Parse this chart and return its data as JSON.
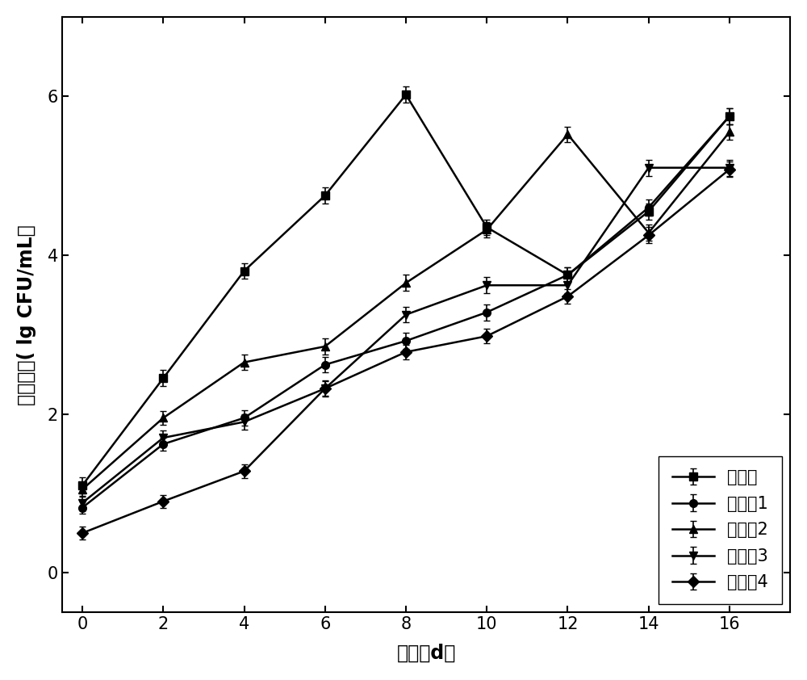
{
  "x": [
    0,
    2,
    4,
    6,
    8,
    10,
    12,
    14,
    16
  ],
  "series_order": [
    "对比例",
    "实施例1",
    "实施例2",
    "实施例3",
    "实施例4"
  ],
  "series": {
    "对比例": {
      "y": [
        1.1,
        2.45,
        3.8,
        4.75,
        6.02,
        4.35,
        3.75,
        4.55,
        5.75
      ],
      "yerr": [
        0.1,
        0.1,
        0.1,
        0.1,
        0.1,
        0.1,
        0.1,
        0.1,
        0.1
      ],
      "marker": "s",
      "label": "对比例"
    },
    "实施例1": {
      "y": [
        0.82,
        1.62,
        1.95,
        2.62,
        2.92,
        3.28,
        3.75,
        4.6,
        5.75
      ],
      "yerr": [
        0.08,
        0.08,
        0.1,
        0.1,
        0.1,
        0.1,
        0.1,
        0.1,
        0.1
      ],
      "marker": "o",
      "label": "实施例1"
    },
    "实施例2": {
      "y": [
        1.05,
        1.95,
        2.65,
        2.85,
        3.65,
        4.32,
        5.52,
        4.28,
        5.55
      ],
      "yerr": [
        0.09,
        0.09,
        0.1,
        0.1,
        0.1,
        0.1,
        0.1,
        0.1,
        0.1
      ],
      "marker": "^",
      "label": "实施例2"
    },
    "实施例3": {
      "y": [
        0.88,
        1.7,
        1.9,
        2.32,
        3.25,
        3.62,
        3.62,
        5.1,
        5.1
      ],
      "yerr": [
        0.09,
        0.09,
        0.1,
        0.1,
        0.1,
        0.1,
        0.1,
        0.1,
        0.1
      ],
      "marker": "v",
      "label": "实施例3"
    },
    "实施例4": {
      "y": [
        0.5,
        0.9,
        1.28,
        2.32,
        2.78,
        2.98,
        3.48,
        4.25,
        5.08
      ],
      "yerr": [
        0.08,
        0.08,
        0.09,
        0.09,
        0.09,
        0.09,
        0.09,
        0.1,
        0.1
      ],
      "marker": "D",
      "label": "实施例4"
    }
  },
  "xlabel": "时间（d）",
  "ylabel": "菌落总数( lg CFU/mL）",
  "xlim": [
    -0.5,
    17.5
  ],
  "ylim": [
    -0.5,
    7.0
  ],
  "xticks": [
    0,
    2,
    4,
    6,
    8,
    10,
    12,
    14,
    16
  ],
  "yticks": [
    0,
    2,
    4,
    6
  ],
  "color": "#000000",
  "linewidth": 1.8,
  "markersize": 7,
  "capsize": 3,
  "legend_loc": "lower right",
  "legend_fontsize": 15,
  "axis_fontsize": 17,
  "tick_fontsize": 15,
  "figure_bg": "#ffffff"
}
